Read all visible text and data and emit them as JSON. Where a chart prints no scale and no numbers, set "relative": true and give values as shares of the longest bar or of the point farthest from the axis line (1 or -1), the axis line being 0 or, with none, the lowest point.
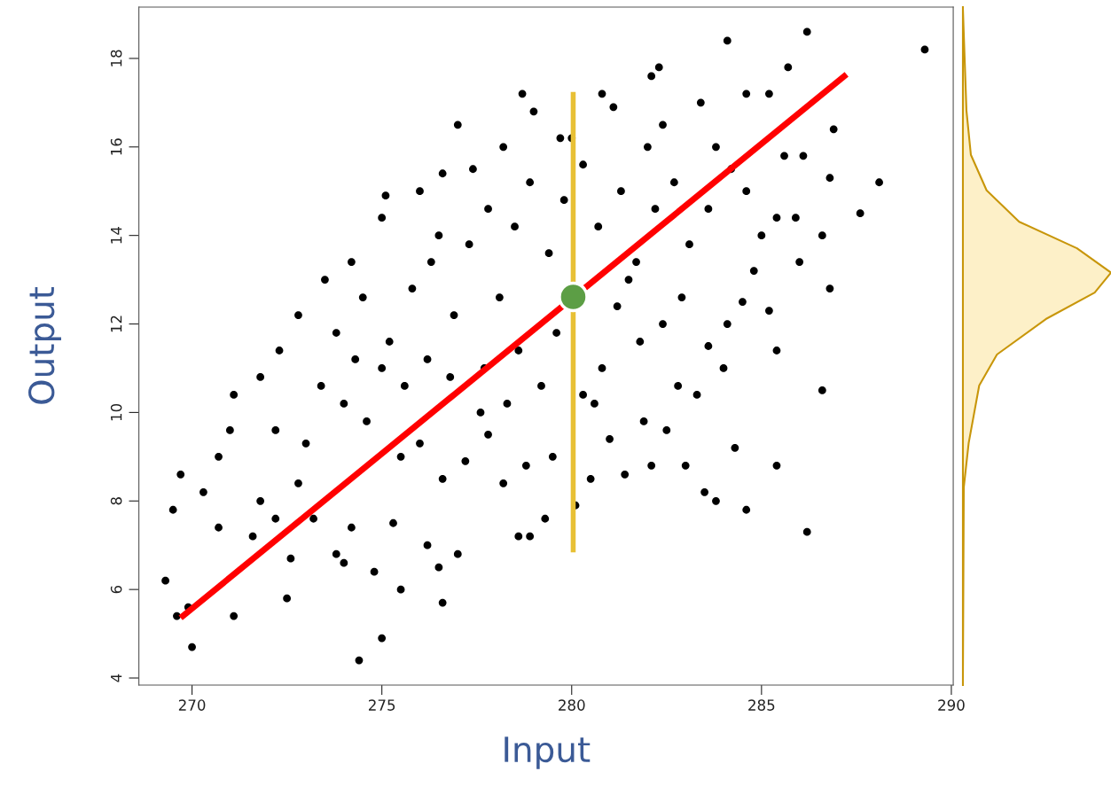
{
  "chart_data": [
    {
      "type": "scatter",
      "xlabel": "Input",
      "ylabel": "Output",
      "xlim": [
        268.6,
        290.05
      ],
      "ylim": [
        3.84,
        19.16
      ],
      "xticks": [
        270,
        275,
        280,
        285,
        290
      ],
      "yticks": [
        4,
        6,
        8,
        10,
        12,
        14,
        16,
        18
      ],
      "marker": "circle",
      "series": [
        {
          "type": "scatter",
          "color": "#000000",
          "x": [
            289.3,
            286.2,
            284.1,
            274.4,
            275,
            270,
            269.3,
            269.5,
            269.7,
            269.6,
            269.9,
            271.1,
            272.5,
            276.6,
            286.2,
            284.6,
            288.1,
            287.6,
            286.9,
            286.8,
            285.7,
            285.2,
            286.6,
            286.8,
            283.5,
            283.8,
            285.4,
            280.1,
            278.9,
            278.6,
            275.5,
            274,
            274.8,
            273.8,
            272.6,
            271.1,
            271,
            270.3,
            270.7,
            277,
            278.7,
            282.3,
            280.8,
            284.6,
            282.1,
            285.6,
            286.1,
            286.6,
            285.9,
            285.4,
            286,
            285.4,
            284,
            283,
            282.1,
            281.4,
            280.5,
            279.3,
            277,
            276.5,
            276.2,
            275.3,
            274.2,
            273.2,
            272.2,
            271.6,
            270.7,
            271.8,
            272.2,
            271.8,
            272.3,
            272.8,
            273.5,
            274.2,
            275,
            275.1,
            276,
            276.6,
            277.4,
            278.2,
            279,
            279.7,
            281.1,
            282.4,
            283.4,
            283.8,
            284.2,
            284.6,
            285,
            284.8,
            284.5,
            285.2,
            284.1,
            283.6,
            282.8,
            282.5,
            281.9,
            281,
            280.6,
            279.5,
            278.8,
            278.2,
            277.8,
            277.2,
            276.6,
            276,
            275.5,
            274.6,
            274,
            273.4,
            273,
            272.8,
            273.8,
            274.5,
            275.2,
            275.8,
            276.3,
            276.9,
            277.3,
            277.7,
            278.1,
            278.5,
            278.9,
            279.4,
            279.8,
            280.3,
            280.7,
            281.3,
            281.7,
            282.2,
            282.7,
            283.1,
            283.6,
            282.9,
            282.4,
            281.8,
            281.2,
            280.8,
            280.3,
            279.6,
            279.2,
            278.6,
            278.3,
            277.6,
            276.8,
            276.2,
            275.6,
            275,
            274.3,
            276.5,
            277.8,
            281.5,
            283.3,
            284.3,
            282,
            280
          ],
          "values": [
            18.2,
            18.6,
            18.4,
            4.4,
            4.9,
            4.7,
            6.2,
            7.8,
            8.6,
            5.4,
            5.6,
            5.4,
            5.8,
            5.7,
            7.3,
            7.8,
            15.2,
            14.5,
            16.4,
            15.3,
            17.8,
            17.2,
            10.5,
            12.8,
            8.2,
            8.0,
            8.8,
            7.9,
            7.2,
            7.2,
            6.0,
            6.6,
            6.4,
            6.8,
            6.7,
            10.4,
            9.6,
            8.2,
            9.0,
            16.5,
            17.2,
            17.8,
            17.2,
            17.2,
            17.6,
            15.8,
            15.8,
            14.0,
            14.4,
            14.4,
            13.4,
            11.4,
            11.0,
            8.8,
            8.8,
            8.6,
            8.5,
            7.6,
            6.8,
            6.5,
            7.0,
            7.5,
            7.4,
            7.6,
            7.6,
            7.2,
            7.4,
            8.0,
            9.6,
            10.8,
            11.4,
            12.2,
            13.0,
            13.4,
            14.4,
            14.9,
            15.0,
            15.4,
            15.5,
            16.0,
            16.8,
            16.2,
            16.9,
            16.5,
            17.0,
            16.0,
            15.5,
            15.0,
            14.0,
            13.2,
            12.5,
            12.3,
            12.0,
            11.5,
            10.6,
            9.6,
            9.8,
            9.4,
            10.2,
            9.0,
            8.8,
            8.4,
            9.5,
            8.9,
            8.5,
            9.3,
            9.0,
            9.8,
            10.2,
            10.6,
            9.3,
            8.4,
            11.8,
            12.6,
            11.6,
            12.8,
            13.4,
            12.2,
            13.8,
            11.0,
            12.6,
            14.2,
            15.2,
            13.6,
            14.8,
            15.6,
            14.2,
            15.0,
            13.4,
            14.6,
            15.2,
            13.8,
            14.6,
            12.6,
            12.0,
            11.6,
            12.4,
            11.0,
            10.4,
            11.8,
            10.6,
            11.4,
            10.2,
            10.0,
            10.8,
            11.2,
            10.6,
            11.0,
            11.2,
            14.0,
            14.6,
            13.0,
            10.4,
            9.2,
            16.0,
            16.2
          ]
        },
        {
          "type": "line",
          "marker": "none",
          "color": "#ff0000",
          "x": [
            269.7,
            287.24
          ],
          "values": [
            5.36,
            17.64
          ]
        },
        {
          "type": "line",
          "marker": "none",
          "color": "#e8c035",
          "x": [
            280.04,
            280.04
          ],
          "values": [
            6.84,
            17.24
          ]
        },
        {
          "type": "scatter",
          "color": "#5c9e45",
          "x": [
            280.04
          ],
          "values": [
            12.61
          ]
        }
      ]
    },
    {
      "type": "area",
      "orientation": "horizontal",
      "relative": true,
      "ylim": [
        3.84,
        19.16
      ],
      "tick_labels": false,
      "x": [
        4.0,
        8.31,
        9.31,
        10.61,
        11.31,
        12.11,
        12.71,
        13.16,
        13.71,
        14.31,
        15.02,
        15.82,
        16.82,
        19.12
      ],
      "series": [
        {
          "color": "#c8960a",
          "values": [
            0,
            0.006,
            0.039,
            0.11,
            0.23,
            0.56,
            0.89,
            1.0,
            0.77,
            0.38,
            0.16,
            0.054,
            0.024,
            0
          ]
        }
      ]
    }
  ]
}
